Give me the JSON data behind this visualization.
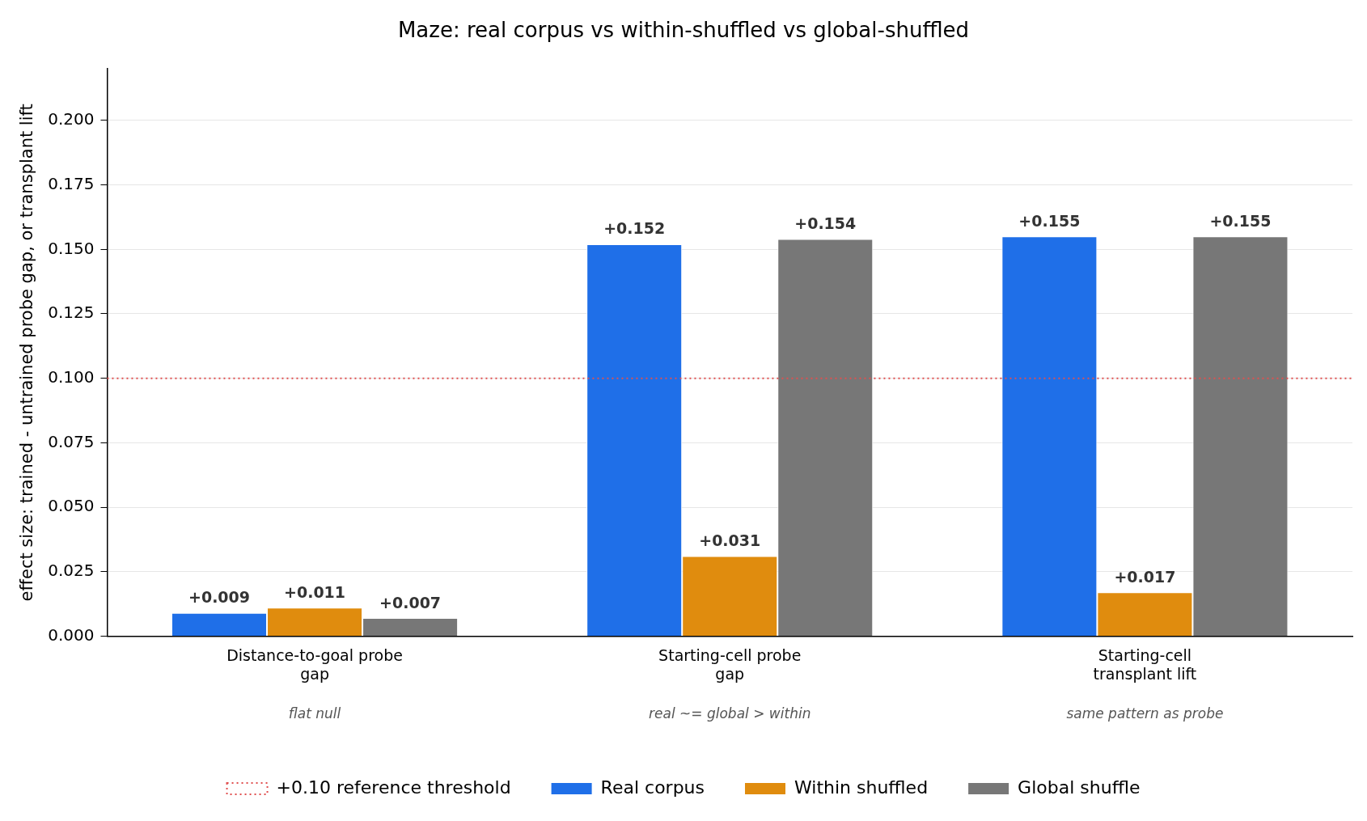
{
  "chart_data": {
    "type": "bar",
    "title": "Maze: real corpus vs within-shuffled vs global-shuffled",
    "ylabel": "effect size: trained - untrained probe gap, or transplant lift",
    "categories": [
      "Distance-to-goal probe\ngap",
      "Starting-cell probe\ngap",
      "Starting-cell\ntransplant lift"
    ],
    "series": [
      {
        "name": "Real corpus",
        "color": "#1f6fe8",
        "values": [
          0.009,
          0.152,
          0.155
        ],
        "value_labels": [
          "+0.009",
          "+0.152",
          "+0.155"
        ]
      },
      {
        "name": "Within shuffled",
        "color": "#e08c0e",
        "values": [
          0.011,
          0.031,
          0.017
        ],
        "value_labels": [
          "+0.011",
          "+0.031",
          "+0.017"
        ]
      },
      {
        "name": "Global shuffle",
        "color": "#777777",
        "values": [
          0.007,
          0.154,
          0.155
        ],
        "value_labels": [
          "+0.007",
          "+0.154",
          "+0.155"
        ]
      }
    ],
    "ylim": [
      0,
      0.22
    ],
    "yticks": [
      {
        "value": 0,
        "label": "0.000"
      },
      {
        "value": 0.025,
        "label": "0.025"
      },
      {
        "value": 0.05,
        "label": "0.050"
      },
      {
        "value": 0.075,
        "label": "0.075"
      },
      {
        "value": 0.1,
        "label": "0.100"
      },
      {
        "value": 0.125,
        "label": "0.125"
      },
      {
        "value": 0.15,
        "label": "0.150"
      },
      {
        "value": 0.175,
        "label": "0.175"
      },
      {
        "value": 0.2,
        "label": "0.200"
      }
    ],
    "grid": "y",
    "legend": "bottom",
    "ref_lines": [
      {
        "axis": "y",
        "value": 0.1,
        "label": "+0.10 reference threshold",
        "color": "#e05050",
        "line_style": "dotted"
      }
    ],
    "annotations": [
      "flat null",
      "real ~= global > within",
      "same pattern as probe"
    ]
  }
}
